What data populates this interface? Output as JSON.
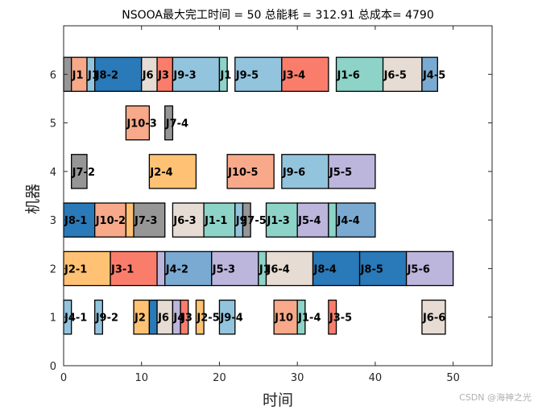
{
  "palette": {
    "blue": "#2a79b8",
    "lightblue": "#93c4dd",
    "midblue": "#7aaad1",
    "orange": "#ffc274",
    "salmon": "#f7a98a",
    "red": "#fa7d6b",
    "teal": "#8dd3c7",
    "beige": "#e6dcd3",
    "lavender": "#bcb5dc",
    "gray": "#969696"
  },
  "watermark": "CSDN @海神之光",
  "chart_data": {
    "type": "gantt",
    "title": "NSOOA最大完工时间 = 50 总能耗 = 312.91 总成本= 4790",
    "xlabel": "时间",
    "ylabel": "机器",
    "xlim": [
      0,
      55
    ],
    "ylim": [
      0,
      7
    ],
    "xticks": [
      0,
      10,
      20,
      30,
      40,
      50
    ],
    "yticks": [
      0,
      1,
      2,
      3,
      4,
      5,
      6
    ],
    "bar_height": 0.7,
    "tasks": [
      {
        "machine": 1,
        "start": 0,
        "end": 1,
        "label": "J4-1",
        "color": "lightblue"
      },
      {
        "machine": 1,
        "start": 4,
        "end": 5,
        "label": "J9-2",
        "color": "lightblue"
      },
      {
        "machine": 1,
        "start": 9,
        "end": 11,
        "label": "J2",
        "color": "orange"
      },
      {
        "machine": 1,
        "start": 11,
        "end": 12,
        "label": "",
        "color": "blue"
      },
      {
        "machine": 1,
        "start": 12,
        "end": 14,
        "label": "J6",
        "color": "beige"
      },
      {
        "machine": 1,
        "start": 14,
        "end": 15,
        "label": "J4",
        "color": "lavender"
      },
      {
        "machine": 1,
        "start": 15,
        "end": 16,
        "label": "J3",
        "color": "red"
      },
      {
        "machine": 1,
        "start": 17,
        "end": 18,
        "label": "J2-5",
        "color": "orange"
      },
      {
        "machine": 1,
        "start": 20,
        "end": 22,
        "label": "J9-4",
        "color": "lightblue"
      },
      {
        "machine": 1,
        "start": 27,
        "end": 30,
        "label": "J10",
        "color": "salmon"
      },
      {
        "machine": 1,
        "start": 30,
        "end": 31,
        "label": "J1-4",
        "color": "teal"
      },
      {
        "machine": 1,
        "start": 34,
        "end": 35,
        "label": "J3-5",
        "color": "red"
      },
      {
        "machine": 1,
        "start": 46,
        "end": 49,
        "label": "J6-6",
        "color": "beige"
      },
      {
        "machine": 2,
        "start": 0,
        "end": 6,
        "label": "J2-1",
        "color": "orange"
      },
      {
        "machine": 2,
        "start": 6,
        "end": 12,
        "label": "J3-1",
        "color": "red"
      },
      {
        "machine": 2,
        "start": 12,
        "end": 13,
        "label": "",
        "color": "lavender"
      },
      {
        "machine": 2,
        "start": 13,
        "end": 19,
        "label": "J4-2",
        "color": "midblue"
      },
      {
        "machine": 2,
        "start": 19,
        "end": 25,
        "label": "J5-3",
        "color": "lavender"
      },
      {
        "machine": 2,
        "start": 25,
        "end": 26,
        "label": "J1",
        "color": "teal"
      },
      {
        "machine": 2,
        "start": 26,
        "end": 32,
        "label": "J6-4",
        "color": "beige"
      },
      {
        "machine": 2,
        "start": 32,
        "end": 38,
        "label": "J8-4",
        "color": "blue"
      },
      {
        "machine": 2,
        "start": 38,
        "end": 44,
        "label": "J8-5",
        "color": "blue"
      },
      {
        "machine": 2,
        "start": 44,
        "end": 50,
        "label": "J5-6",
        "color": "lavender"
      },
      {
        "machine": 3,
        "start": 0,
        "end": 4,
        "label": "J8-1",
        "color": "blue"
      },
      {
        "machine": 3,
        "start": 4,
        "end": 8,
        "label": "J10-2",
        "color": "salmon"
      },
      {
        "machine": 3,
        "start": 8,
        "end": 9,
        "label": "",
        "color": "orange"
      },
      {
        "machine": 3,
        "start": 9,
        "end": 13,
        "label": "J7-3",
        "color": "gray"
      },
      {
        "machine": 3,
        "start": 14,
        "end": 18,
        "label": "J6-3",
        "color": "beige"
      },
      {
        "machine": 3,
        "start": 18,
        "end": 22,
        "label": "J1-1",
        "color": "teal"
      },
      {
        "machine": 3,
        "start": 22,
        "end": 23,
        "label": "J9",
        "color": "lightblue"
      },
      {
        "machine": 3,
        "start": 23,
        "end": 24,
        "label": "J7-5",
        "color": "gray"
      },
      {
        "machine": 3,
        "start": 26,
        "end": 30,
        "label": "J1-3",
        "color": "teal"
      },
      {
        "machine": 3,
        "start": 30,
        "end": 34,
        "label": "J5-4",
        "color": "lavender"
      },
      {
        "machine": 3,
        "start": 34,
        "end": 35,
        "label": "",
        "color": "teal"
      },
      {
        "machine": 3,
        "start": 35,
        "end": 40,
        "label": "J4-4",
        "color": "midblue"
      },
      {
        "machine": 4,
        "start": 1,
        "end": 3,
        "label": "J7-2",
        "color": "gray"
      },
      {
        "machine": 4,
        "start": 11,
        "end": 17,
        "label": "J2-4",
        "color": "orange"
      },
      {
        "machine": 4,
        "start": 21,
        "end": 27,
        "label": "J10-5",
        "color": "salmon"
      },
      {
        "machine": 4,
        "start": 28,
        "end": 34,
        "label": "J9-6",
        "color": "lightblue"
      },
      {
        "machine": 4,
        "start": 34,
        "end": 40,
        "label": "J5-5",
        "color": "lavender"
      },
      {
        "machine": 5,
        "start": 8,
        "end": 11,
        "label": "J10-3",
        "color": "salmon"
      },
      {
        "machine": 5,
        "start": 13,
        "end": 14,
        "label": "J7-4",
        "color": "gray"
      },
      {
        "machine": 6,
        "start": 0,
        "end": 1,
        "label": "",
        "color": "gray"
      },
      {
        "machine": 6,
        "start": 1,
        "end": 3,
        "label": "J1",
        "color": "salmon"
      },
      {
        "machine": 6,
        "start": 3,
        "end": 4,
        "label": "J1",
        "color": "lightblue"
      },
      {
        "machine": 6,
        "start": 4,
        "end": 10,
        "label": "J8-2",
        "color": "blue"
      },
      {
        "machine": 6,
        "start": 10,
        "end": 12,
        "label": "J6",
        "color": "beige"
      },
      {
        "machine": 6,
        "start": 12,
        "end": 14,
        "label": "J3",
        "color": "red"
      },
      {
        "machine": 6,
        "start": 14,
        "end": 20,
        "label": "J9-3",
        "color": "lightblue"
      },
      {
        "machine": 6,
        "start": 20,
        "end": 21,
        "label": "J1",
        "color": "teal"
      },
      {
        "machine": 6,
        "start": 22,
        "end": 28,
        "label": "J9-5",
        "color": "lightblue"
      },
      {
        "machine": 6,
        "start": 28,
        "end": 34,
        "label": "J3-4",
        "color": "red"
      },
      {
        "machine": 6,
        "start": 35,
        "end": 41,
        "label": "J1-6",
        "color": "teal"
      },
      {
        "machine": 6,
        "start": 41,
        "end": 46,
        "label": "J6-5",
        "color": "beige"
      },
      {
        "machine": 6,
        "start": 46,
        "end": 48,
        "label": "J4-5",
        "color": "midblue"
      }
    ]
  }
}
